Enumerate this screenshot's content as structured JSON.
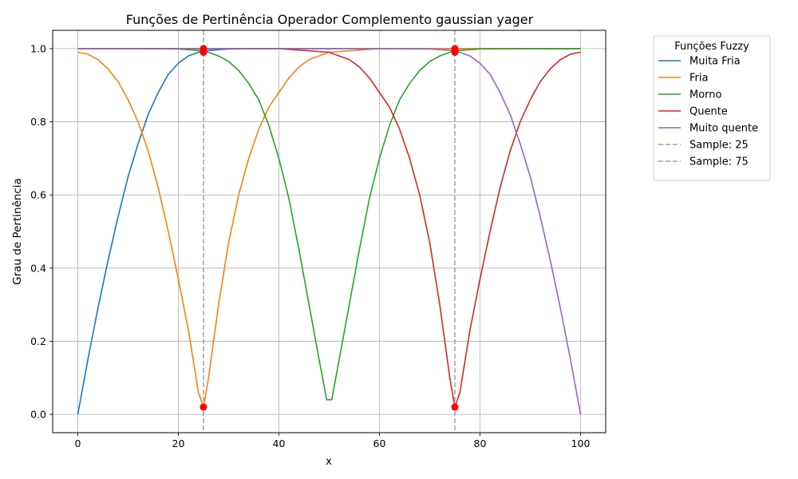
{
  "chart_data": {
    "type": "line",
    "title": "Funções de Pertinência Operador Complemento gaussian yager",
    "xlabel": "x",
    "ylabel": "Grau de Pertinência",
    "xlim": [
      -5,
      105
    ],
    "ylim": [
      -0.05,
      1.05
    ],
    "xticks": [
      0,
      20,
      40,
      60,
      80,
      100
    ],
    "yticks": [
      0.0,
      0.2,
      0.4,
      0.6,
      0.8,
      1.0
    ],
    "xtick_labels": [
      "0",
      "20",
      "40",
      "60",
      "80",
      "100"
    ],
    "ytick_labels": [
      "0.0",
      "0.2",
      "0.4",
      "0.6",
      "0.8",
      "1.0"
    ],
    "grid": true,
    "legend": {
      "title": "Funções Fuzzy",
      "placement": "outside-top-right"
    },
    "series": [
      {
        "name": "Muita Fria",
        "color": "#1f77b4",
        "x": [
          0,
          2,
          4,
          6,
          8,
          10,
          12,
          14,
          16,
          18,
          20,
          22,
          24,
          26,
          30,
          40,
          60,
          80,
          100
        ],
        "y": [
          0.0,
          0.15,
          0.29,
          0.42,
          0.54,
          0.65,
          0.74,
          0.82,
          0.88,
          0.93,
          0.96,
          0.98,
          0.99,
          0.995,
          0.999,
          1.0,
          1.0,
          1.0,
          1.0
        ]
      },
      {
        "name": "Fria",
        "color": "#ff7f0e",
        "x": [
          0,
          2,
          4,
          6,
          8,
          10,
          12,
          14,
          16,
          18,
          20,
          22,
          24,
          25,
          26,
          28,
          30,
          32,
          34,
          36,
          38,
          40,
          42,
          44,
          46,
          48,
          50,
          60,
          70,
          80,
          90,
          100
        ],
        "y": [
          0.99,
          0.985,
          0.97,
          0.945,
          0.91,
          0.86,
          0.8,
          0.72,
          0.62,
          0.5,
          0.37,
          0.23,
          0.06,
          0.02,
          0.1,
          0.3,
          0.47,
          0.6,
          0.7,
          0.78,
          0.84,
          0.88,
          0.92,
          0.95,
          0.97,
          0.98,
          0.99,
          1.0,
          1.0,
          1.0,
          1.0,
          1.0
        ]
      },
      {
        "name": "Morno",
        "color": "#2ca02c",
        "x": [
          0,
          10,
          20,
          24,
          26,
          28,
          30,
          32,
          34,
          36,
          38,
          40,
          42,
          44,
          46,
          48,
          49.5,
          50.5,
          52,
          54,
          56,
          58,
          60,
          62,
          64,
          66,
          68,
          70,
          72,
          74,
          76,
          80,
          90,
          100
        ],
        "y": [
          1.0,
          1.0,
          0.999,
          0.995,
          0.99,
          0.98,
          0.965,
          0.94,
          0.905,
          0.86,
          0.79,
          0.7,
          0.59,
          0.45,
          0.3,
          0.15,
          0.04,
          0.04,
          0.15,
          0.3,
          0.45,
          0.59,
          0.7,
          0.79,
          0.86,
          0.905,
          0.94,
          0.965,
          0.98,
          0.99,
          0.995,
          0.999,
          1.0,
          1.0
        ]
      },
      {
        "name": "Quente",
        "color": "#d62728",
        "x": [
          0,
          10,
          20,
          30,
          40,
          50,
          52,
          54,
          56,
          58,
          60,
          62,
          64,
          66,
          68,
          70,
          72,
          74,
          75,
          76,
          78,
          80,
          82,
          84,
          86,
          88,
          90,
          92,
          94,
          96,
          98,
          100
        ],
        "y": [
          1.0,
          1.0,
          1.0,
          1.0,
          1.0,
          0.99,
          0.98,
          0.97,
          0.95,
          0.92,
          0.88,
          0.84,
          0.78,
          0.7,
          0.6,
          0.47,
          0.3,
          0.1,
          0.02,
          0.06,
          0.23,
          0.37,
          0.5,
          0.62,
          0.72,
          0.8,
          0.86,
          0.91,
          0.945,
          0.97,
          0.985,
          0.99
        ]
      },
      {
        "name": "Muito quente",
        "color": "#9467bd",
        "x": [
          0,
          20,
          40,
          60,
          70,
          74,
          76,
          78,
          80,
          82,
          84,
          86,
          88,
          90,
          92,
          94,
          96,
          98,
          100
        ],
        "y": [
          1.0,
          1.0,
          1.0,
          1.0,
          0.999,
          0.995,
          0.99,
          0.98,
          0.96,
          0.93,
          0.88,
          0.82,
          0.74,
          0.65,
          0.54,
          0.42,
          0.29,
          0.15,
          0.0
        ]
      }
    ],
    "vlines": [
      {
        "name": "Sample: 25",
        "x": 25,
        "color": "#a0a0a0",
        "style": "dashed"
      },
      {
        "name": "Sample: 75",
        "x": 75,
        "color": "#a0a0a0",
        "style": "dashed"
      }
    ],
    "markers": {
      "color": "#ff0000",
      "points": [
        {
          "x": 25,
          "y": 0.02
        },
        {
          "x": 25,
          "y": 0.99
        },
        {
          "x": 25,
          "y": 0.995
        },
        {
          "x": 25,
          "y": 1.0
        },
        {
          "x": 75,
          "y": 0.02
        },
        {
          "x": 75,
          "y": 0.99
        },
        {
          "x": 75,
          "y": 0.995
        },
        {
          "x": 75,
          "y": 1.0
        }
      ]
    }
  }
}
